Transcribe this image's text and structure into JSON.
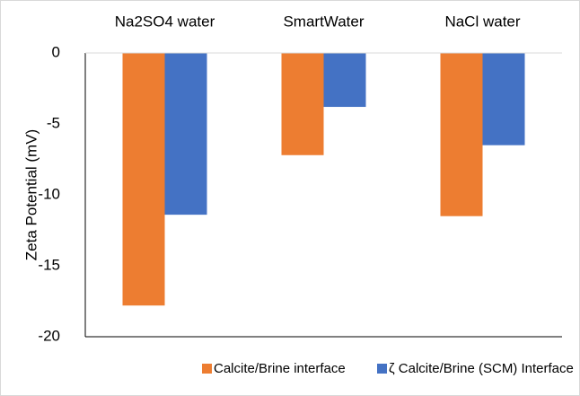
{
  "chart_data": {
    "type": "bar",
    "y_label": "Zeta Potential (mV)",
    "categories": [
      "Na2SO4 water",
      "SmartWater",
      "NaCl water"
    ],
    "series": [
      {
        "name": "Calcite/Brine interface",
        "color": "#ed7d31",
        "values": [
          -17.8,
          -7.2,
          -11.5
        ]
      },
      {
        "name": "ζ Calcite/Brine (SCM) Interface",
        "color": "#4472c4",
        "values": [
          -11.4,
          -3.8,
          -6.5
        ]
      }
    ],
    "ylim": [
      0,
      -20
    ],
    "yticks": [
      0,
      -5,
      -10,
      -15,
      -20
    ],
    "grid": false,
    "legend": "bottom"
  }
}
